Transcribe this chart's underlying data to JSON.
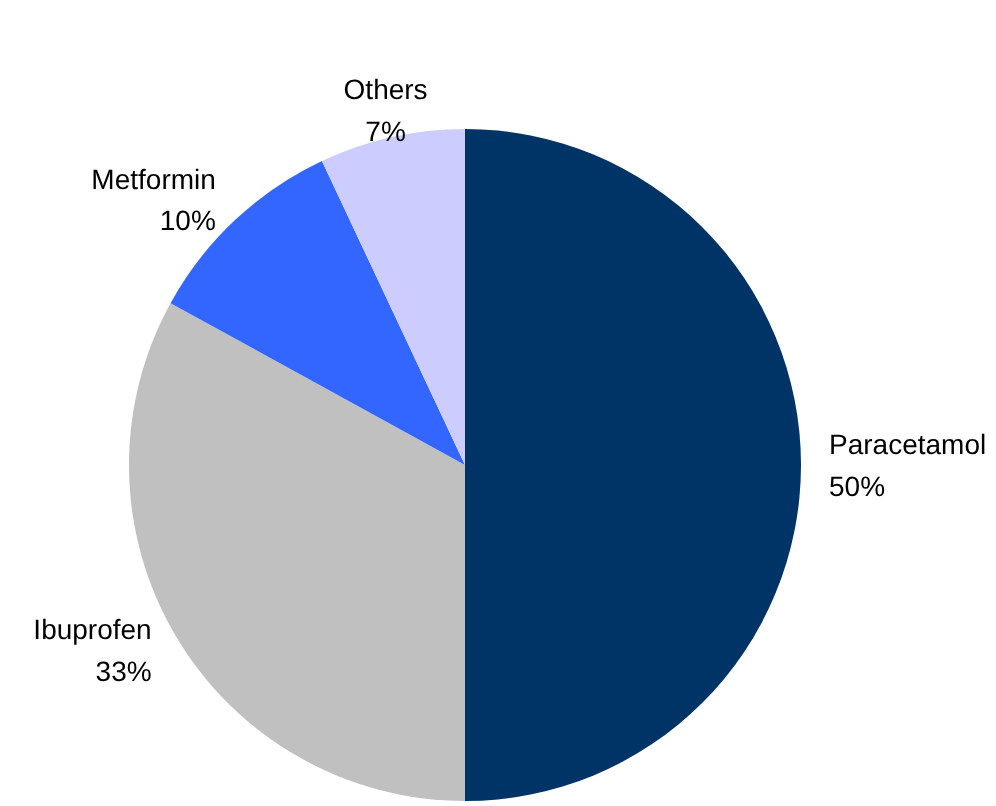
{
  "chart_data": {
    "type": "pie",
    "categories": [
      "Paracetamol",
      "Ibuprofen",
      "Metformin",
      "Others"
    ],
    "values": [
      50,
      33,
      10,
      7
    ],
    "colors": [
      "#003366",
      "#c0c0c0",
      "#3366ff",
      "#ccccff"
    ],
    "value_labels": [
      "50%",
      "33%",
      "10%",
      "7%"
    ],
    "legend": false
  }
}
